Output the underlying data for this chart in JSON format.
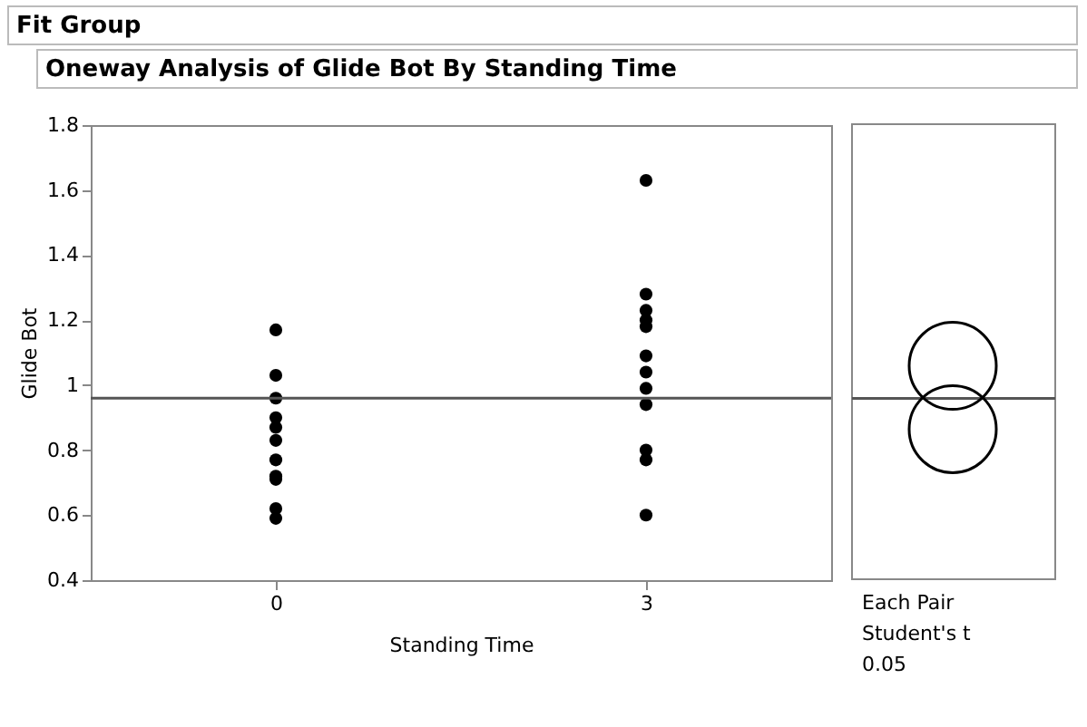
{
  "chart_data": [
    {
      "type": "scatter",
      "title": "Fit Group",
      "subtitle": "Oneway Analysis of Glide Bot By Standing Time",
      "xlabel": "Standing Time",
      "ylabel": "Glide Bot",
      "categories": [
        "0",
        "3"
      ],
      "ylim": [
        0.4,
        1.8
      ],
      "yticks": [
        0.4,
        0.6,
        0.8,
        1,
        1.2,
        1.4,
        1.6,
        1.8
      ],
      "grid": false,
      "legend": false,
      "marker": "circle",
      "series": [
        {
          "color": "#000000",
          "x": [
            "0",
            "0",
            "0",
            "0",
            "0",
            "0",
            "0",
            "0",
            "0",
            "0",
            "0"
          ],
          "values": [
            1.17,
            1.03,
            0.96,
            0.9,
            0.87,
            0.83,
            0.77,
            0.72,
            0.71,
            0.62,
            0.59
          ]
        },
        {
          "color": "#000000",
          "x": [
            "3",
            "3",
            "3",
            "3",
            "3",
            "3",
            "3",
            "3",
            "3",
            "3",
            "3",
            "3"
          ],
          "values": [
            1.63,
            1.28,
            1.23,
            1.2,
            1.18,
            1.09,
            1.04,
            0.99,
            0.94,
            0.8,
            0.77,
            0.6
          ]
        }
      ],
      "ref_lines": [
        {
          "axis": "y",
          "value": 0.96,
          "color": "#555555"
        }
      ]
    },
    {
      "type": "other",
      "annotations": [
        "Each Pair",
        "Student's t",
        "0.05"
      ]
    }
  ]
}
